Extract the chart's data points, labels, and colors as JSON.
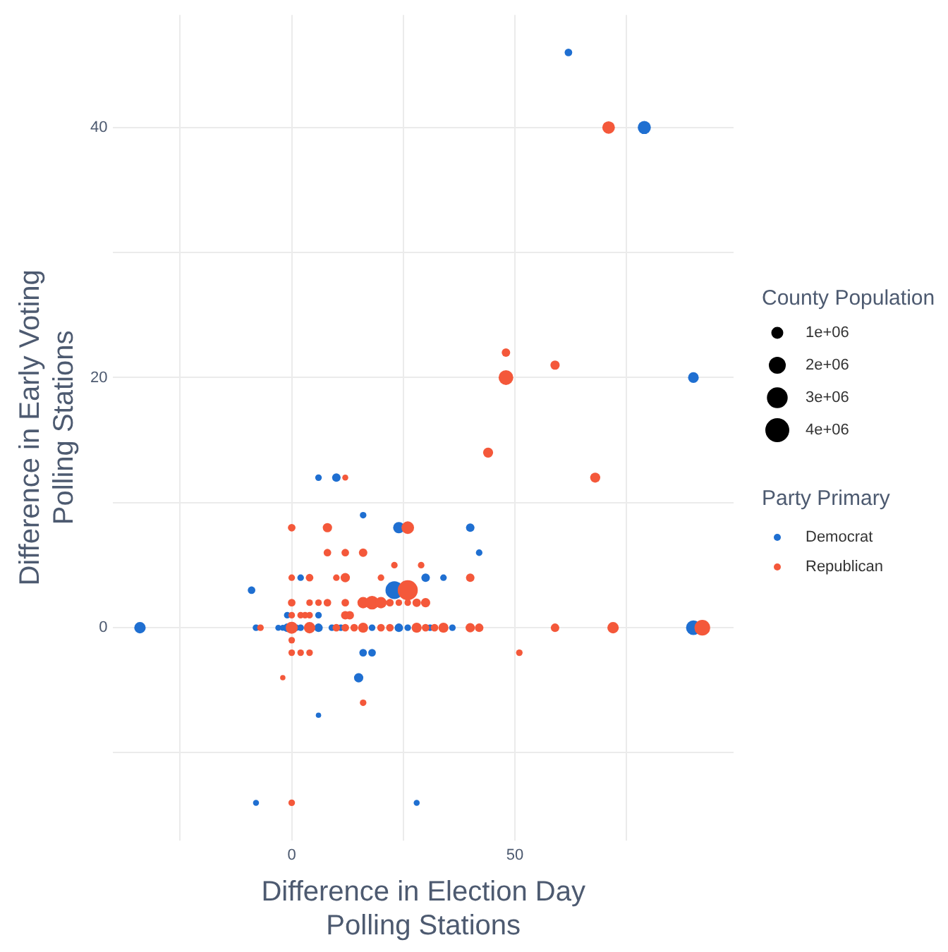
{
  "chart_data": {
    "type": "bubble",
    "xlabel": "Difference in Election Day\nPolling Stations",
    "ylabel": "Difference in Early Voting\nPolling Stations",
    "legend_title": "Party Primary",
    "annotations": [
      "County Population"
    ],
    "xlim": [
      -40,
      99
    ],
    "ylim": [
      -17,
      49
    ],
    "xticks": [
      {
        "value": -25,
        "label": null
      },
      0,
      {
        "value": 25,
        "label": null
      },
      50,
      {
        "value": 75,
        "label": null
      }
    ],
    "yticks": [
      {
        "value": -10,
        "label": null
      },
      0,
      {
        "value": 10,
        "label": null
      },
      20,
      {
        "value": 30,
        "label": null
      },
      40
    ],
    "grid": true,
    "legend": "right",
    "size_legend": [
      {
        "value": 1000000,
        "label": "1e+06"
      },
      {
        "value": 2000000,
        "label": "2e+06"
      },
      {
        "value": 3000000,
        "label": "3e+06"
      },
      {
        "value": 4000000,
        "label": "4e+06"
      }
    ],
    "series": [
      {
        "name": "Democrat",
        "color": "#1f6fd1",
        "x": [
          -34,
          6,
          10,
          16,
          24,
          40,
          42,
          -9,
          2,
          30,
          34,
          23,
          -1,
          6,
          -8,
          -3,
          -2,
          -1,
          1,
          2,
          6,
          9,
          11,
          18,
          24,
          26,
          31,
          36,
          90,
          16,
          18,
          15,
          6,
          -8,
          28,
          62,
          79,
          90
        ],
        "values": [
          0,
          12,
          12,
          9,
          8,
          8,
          6,
          3,
          4,
          4,
          4,
          3,
          1,
          1,
          0,
          0,
          0,
          0,
          0,
          0,
          0,
          0,
          0,
          0,
          0,
          0,
          0,
          0,
          0,
          -2,
          -2,
          -4,
          -7,
          -14,
          -14,
          46,
          40,
          20
        ],
        "sizes": [
          900000,
          300000,
          500000,
          300000,
          900000,
          500000,
          300000,
          400000,
          300000,
          500000,
          300000,
          2200000,
          300000,
          300000,
          300000,
          250000,
          250000,
          500000,
          300000,
          300000,
          500000,
          300000,
          300000,
          300000,
          500000,
          300000,
          300000,
          300000,
          1500000,
          400000,
          400000,
          600000,
          200000,
          250000,
          250000,
          400000,
          1200000,
          800000
        ]
      },
      {
        "name": "Republican",
        "color": "#f4583a",
        "x": [
          44,
          12,
          0,
          8,
          26,
          8,
          12,
          16,
          23,
          29,
          0,
          4,
          10,
          12,
          20,
          40,
          26,
          0,
          4,
          6,
          8,
          12,
          16,
          18,
          20,
          22,
          24,
          26,
          28,
          30,
          0,
          2,
          3,
          4,
          12,
          13,
          -7,
          0,
          4,
          10,
          12,
          14,
          16,
          20,
          22,
          28,
          30,
          32,
          34,
          40,
          42,
          59,
          72,
          92,
          0,
          0,
          2,
          4,
          51,
          -2,
          16,
          0,
          48,
          59,
          48,
          71,
          68
        ],
        "values": [
          14,
          12,
          8,
          8,
          8,
          6,
          6,
          6,
          5,
          5,
          4,
          4,
          4,
          4,
          4,
          4,
          3,
          2,
          2,
          2,
          2,
          2,
          2,
          2,
          2,
          2,
          2,
          2,
          2,
          2,
          1,
          1,
          1,
          1,
          1,
          1,
          0,
          0,
          0,
          0,
          0,
          0,
          0,
          0,
          0,
          0,
          0,
          0,
          0,
          0,
          0,
          0,
          0,
          0,
          -1,
          -2,
          -2,
          -2,
          -2,
          -4,
          -6,
          -14,
          22,
          21,
          20,
          40,
          12
        ],
        "sizes": [
          700000,
          250000,
          400000,
          600000,
          1100000,
          400000,
          400000,
          500000,
          300000,
          300000,
          300000,
          400000,
          300000,
          600000,
          300000,
          500000,
          2800000,
          400000,
          300000,
          300000,
          400000,
          400000,
          900000,
          1300000,
          900000,
          400000,
          300000,
          300000,
          500000,
          600000,
          300000,
          300000,
          300000,
          300000,
          500000,
          500000,
          300000,
          1000000,
          900000,
          400000,
          400000,
          400000,
          700000,
          400000,
          400000,
          700000,
          400000,
          400000,
          700000,
          600000,
          500000,
          500000,
          900000,
          1700000,
          300000,
          300000,
          300000,
          300000,
          300000,
          200000,
          300000,
          300000,
          500000,
          600000,
          1500000,
          1100000,
          700000
        ]
      }
    ]
  }
}
